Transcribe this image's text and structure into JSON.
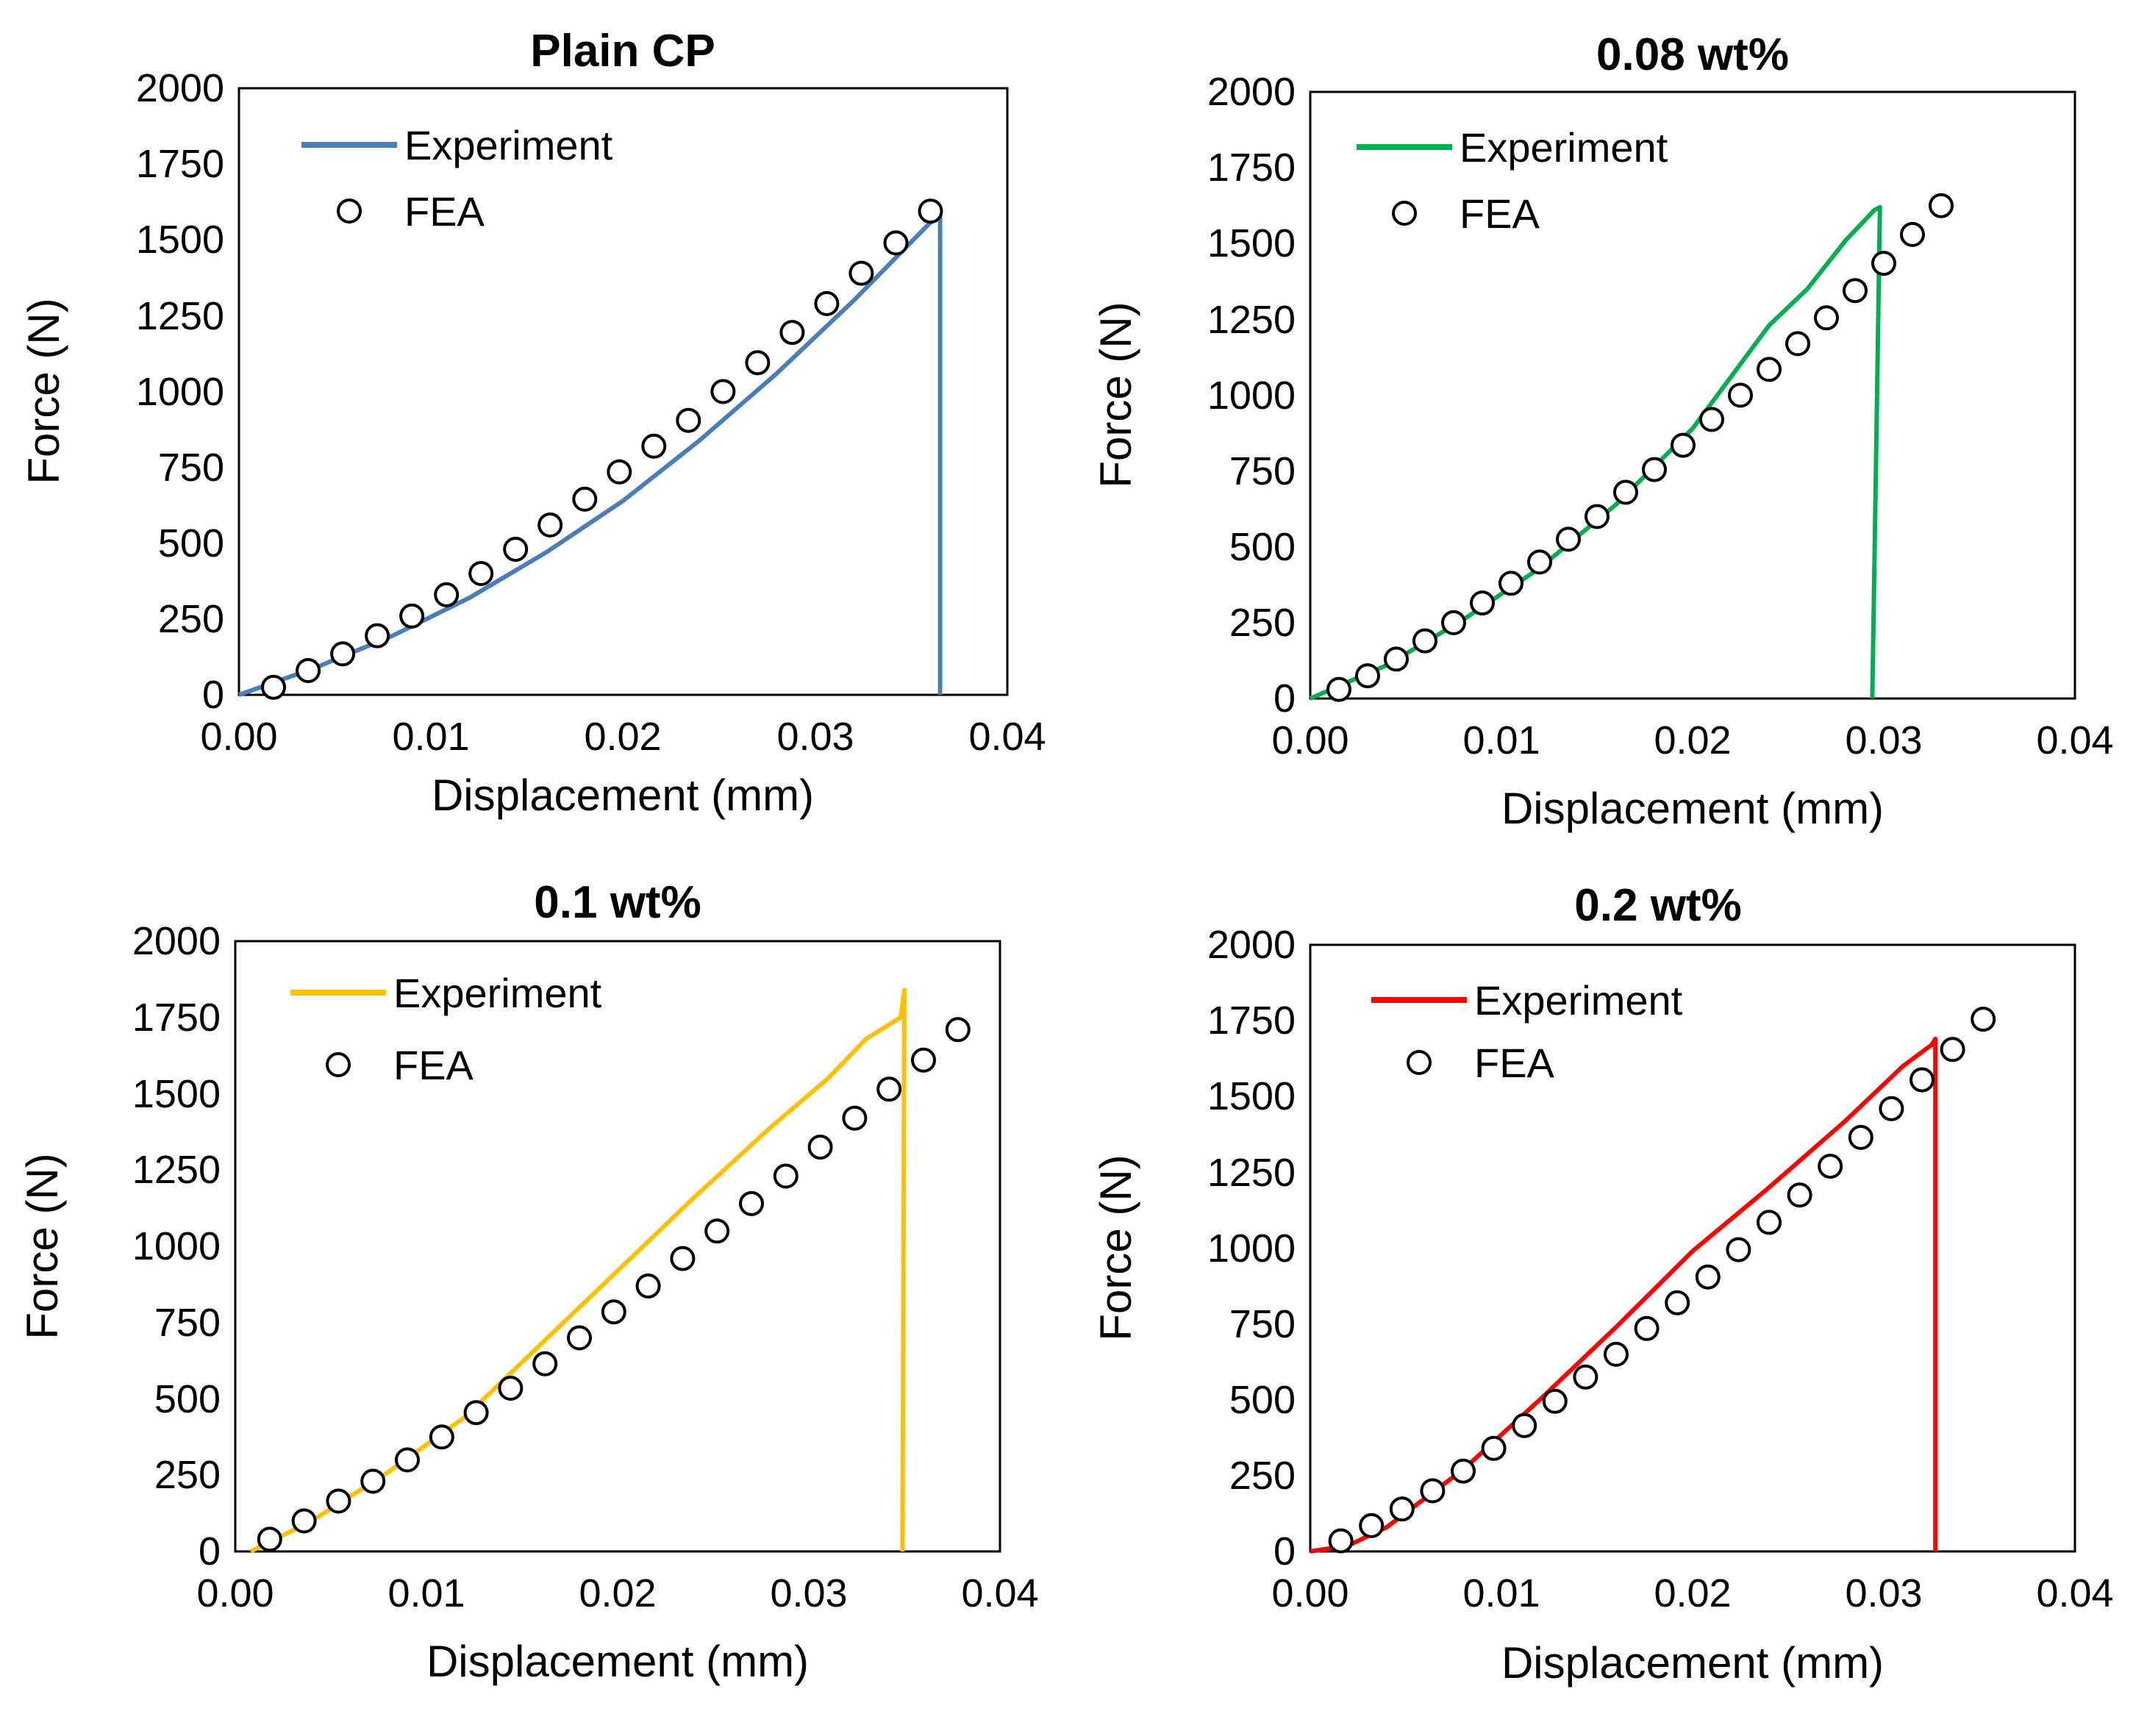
{
  "chart_data": [
    {
      "type": "line",
      "title": "Plain CP",
      "xlabel": "Displacement (mm)",
      "ylabel": "Force (N)",
      "xlim": [
        0,
        0.04
      ],
      "ylim": [
        0,
        2000
      ],
      "xticks": [
        "0.00",
        "0.01",
        "0.02",
        "0.03",
        "0.04"
      ],
      "yticks": [
        "0",
        "250",
        "500",
        "750",
        "1000",
        "1250",
        "1500",
        "1750",
        "2000"
      ],
      "color": "#4a7ebb",
      "legend": [
        "Experiment",
        "FEA"
      ],
      "series": [
        {
          "name": "Experiment",
          "x": [
            0,
            0.004,
            0.008,
            0.012,
            0.016,
            0.02,
            0.024,
            0.028,
            0.032,
            0.0365,
            0.0365
          ],
          "y": [
            0,
            90,
            195,
            320,
            470,
            640,
            840,
            1060,
            1300,
            1590,
            0
          ]
        },
        {
          "name": "FEA",
          "x": [
            0.0018,
            0.0036,
            0.0054,
            0.0072,
            0.009,
            0.0108,
            0.0126,
            0.0144,
            0.0162,
            0.018,
            0.0198,
            0.0216,
            0.0234,
            0.0252,
            0.027,
            0.0288,
            0.0306,
            0.0324,
            0.0342,
            0.036
          ],
          "y": [
            25,
            80,
            135,
            195,
            260,
            330,
            400,
            480,
            560,
            645,
            735,
            820,
            905,
            1000,
            1095,
            1195,
            1290,
            1390,
            1490,
            1595
          ]
        }
      ]
    },
    {
      "type": "line",
      "title": "0.08 wt%",
      "xlabel": "Displacement (mm)",
      "ylabel": "Force (N)",
      "xlim": [
        0,
        0.04
      ],
      "ylim": [
        0,
        2000
      ],
      "xticks": [
        "0.00",
        "0.01",
        "0.02",
        "0.03",
        "0.04"
      ],
      "yticks": [
        "0",
        "250",
        "500",
        "750",
        "1000",
        "1250",
        "1500",
        "1750",
        "2000"
      ],
      "color": "#00b050",
      "legend": [
        "Experiment",
        "FEA"
      ],
      "series": [
        {
          "name": "Experiment",
          "x": [
            0,
            0.004,
            0.008,
            0.012,
            0.016,
            0.02,
            0.022,
            0.024,
            0.026,
            0.027,
            0.028,
            0.0295,
            0.0298,
            0.0296,
            0.0294
          ],
          "y": [
            0,
            110,
            260,
            430,
            640,
            890,
            1060,
            1230,
            1350,
            1430,
            1510,
            1610,
            1620,
            800,
            0
          ]
        },
        {
          "name": "FEA",
          "x": [
            0.0015,
            0.003,
            0.0045,
            0.006,
            0.0075,
            0.009,
            0.0105,
            0.012,
            0.0135,
            0.015,
            0.0165,
            0.018,
            0.0195,
            0.021,
            0.0225,
            0.024,
            0.0255,
            0.027,
            0.0285,
            0.03,
            0.0315,
            0.033
          ],
          "y": [
            30,
            75,
            130,
            190,
            250,
            315,
            380,
            450,
            525,
            600,
            680,
            755,
            835,
            920,
            1000,
            1085,
            1170,
            1255,
            1345,
            1435,
            1530,
            1625
          ]
        }
      ]
    },
    {
      "type": "line",
      "title": "0.1 wt%",
      "xlabel": "Displacement (mm)",
      "ylabel": "Force (N)",
      "xlim": [
        0,
        0.04
      ],
      "ylim": [
        0,
        2000
      ],
      "xticks": [
        "0.00",
        "0.01",
        "0.02",
        "0.03",
        "0.04"
      ],
      "yticks": [
        "0",
        "250",
        "500",
        "750",
        "1000",
        "1250",
        "1500",
        "1750",
        "2000"
      ],
      "color": "#ffc000",
      "legend": [
        "Experiment",
        "FEA"
      ],
      "series": [
        {
          "name": "Experiment",
          "x": [
            0.0008,
            0.004,
            0.008,
            0.012,
            0.016,
            0.02,
            0.024,
            0.028,
            0.031,
            0.033,
            0.0348,
            0.035,
            0.0349
          ],
          "y": [
            0,
            100,
            260,
            440,
            680,
            920,
            1160,
            1390,
            1550,
            1680,
            1750,
            1840,
            0
          ]
        },
        {
          "name": "FEA",
          "x": [
            0.0018,
            0.0036,
            0.0054,
            0.0072,
            0.009,
            0.0108,
            0.0126,
            0.0144,
            0.0162,
            0.018,
            0.0198,
            0.0216,
            0.0234,
            0.0252,
            0.027,
            0.0288,
            0.0306,
            0.0324,
            0.0342,
            0.036,
            0.0378
          ],
          "y": [
            40,
            100,
            165,
            230,
            300,
            375,
            455,
            535,
            615,
            700,
            785,
            870,
            960,
            1050,
            1140,
            1230,
            1325,
            1420,
            1515,
            1610,
            1710
          ]
        }
      ]
    },
    {
      "type": "line",
      "title": "0.2 wt%",
      "xlabel": "Displacement (mm)",
      "ylabel": "Force (N)",
      "xlim": [
        0,
        0.04
      ],
      "ylim": [
        0,
        2000
      ],
      "xticks": [
        "0.00",
        "0.01",
        "0.02",
        "0.03",
        "0.04"
      ],
      "yticks": [
        "0",
        "250",
        "500",
        "750",
        "1000",
        "1250",
        "1500",
        "1750",
        "2000"
      ],
      "color": "#ff0000",
      "legend": [
        "Experiment",
        "FEA"
      ],
      "series": [
        {
          "name": "Experiment",
          "x": [
            0,
            0.002,
            0.004,
            0.008,
            0.012,
            0.016,
            0.02,
            0.024,
            0.028,
            0.031,
            0.0325,
            0.0327,
            0.0327
          ],
          "y": [
            0,
            20,
            80,
            270,
            500,
            740,
            990,
            1200,
            1420,
            1600,
            1670,
            1690,
            0
          ]
        },
        {
          "name": "FEA",
          "x": [
            0.0016,
            0.0032,
            0.0048,
            0.0064,
            0.008,
            0.0096,
            0.0112,
            0.0128,
            0.0144,
            0.016,
            0.0176,
            0.0192,
            0.0208,
            0.0224,
            0.024,
            0.0256,
            0.0272,
            0.0288,
            0.0304,
            0.032,
            0.0336,
            0.0352
          ],
          "y": [
            35,
            85,
            140,
            200,
            265,
            340,
            415,
            495,
            575,
            650,
            735,
            820,
            905,
            995,
            1085,
            1175,
            1270,
            1365,
            1460,
            1555,
            1655,
            1755
          ]
        }
      ]
    }
  ]
}
